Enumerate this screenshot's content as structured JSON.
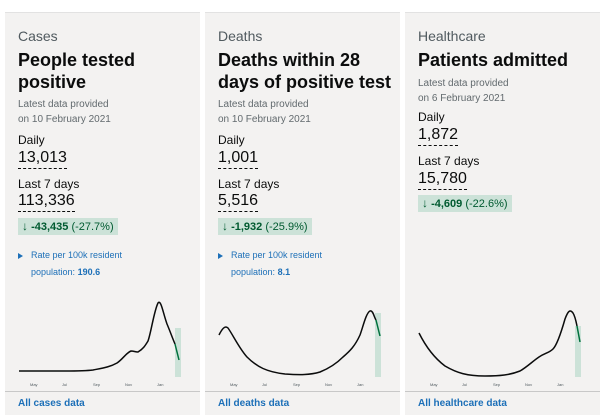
{
  "cards": [
    {
      "caption": "Cases",
      "heading": "People tested positive",
      "latest_line1": "Latest data provided",
      "latest_line2": "on 10 February 2021",
      "daily_label": "Daily",
      "daily_value": "13,013",
      "week_label": "Last 7 days",
      "week_value": "113,336",
      "change_arrow": "↓",
      "change_value": "-43,435",
      "change_pct": "(-27.7%)",
      "rate_text": "Rate per 100k resident population:",
      "rate_value": "190.6",
      "link": "All cases data",
      "ticks": [
        "May",
        "Jul",
        "Sep",
        "Nov",
        "Jan"
      ]
    },
    {
      "caption": "Deaths",
      "heading": "Deaths within 28 days of positive test",
      "latest_line1": "Latest data provided",
      "latest_line2": "on 10 February 2021",
      "daily_label": "Daily",
      "daily_value": "1,001",
      "week_label": "Last 7 days",
      "week_value": "5,516",
      "change_arrow": "↓",
      "change_value": "-1,932",
      "change_pct": "(-25.9%)",
      "rate_text": "Rate per 100k resident population:",
      "rate_value": "8.1",
      "link": "All deaths data",
      "ticks": [
        "May",
        "Jul",
        "Sep",
        "Nov",
        "Jan"
      ]
    },
    {
      "caption": "Healthcare",
      "heading": "Patients admitted",
      "latest_line1": "Latest data provided",
      "latest_line2": "on 6 February 2021",
      "daily_label": "Daily",
      "daily_value": "1,872",
      "week_label": "Last 7 days",
      "week_value": "15,780",
      "change_arrow": "↓",
      "change_value": "-4,609",
      "change_pct": "(-22.6%)",
      "link": "All healthcare data",
      "ticks": [
        "May",
        "Jul",
        "Sep",
        "Nov",
        "Jan"
      ]
    }
  ],
  "colors": {
    "card_bg": "#f3f2f1",
    "text": "#0b0c0c",
    "link": "#1d70b8",
    "positive_bg": "#cce2d8",
    "positive_text": "#005a30",
    "trend_line": "#0b0c0c",
    "recent_line": "#00703c",
    "recent_band": "#cce2d8"
  },
  "icons": {
    "change": "down-arrow-icon",
    "rate": "disclosure-triangle-icon"
  }
}
